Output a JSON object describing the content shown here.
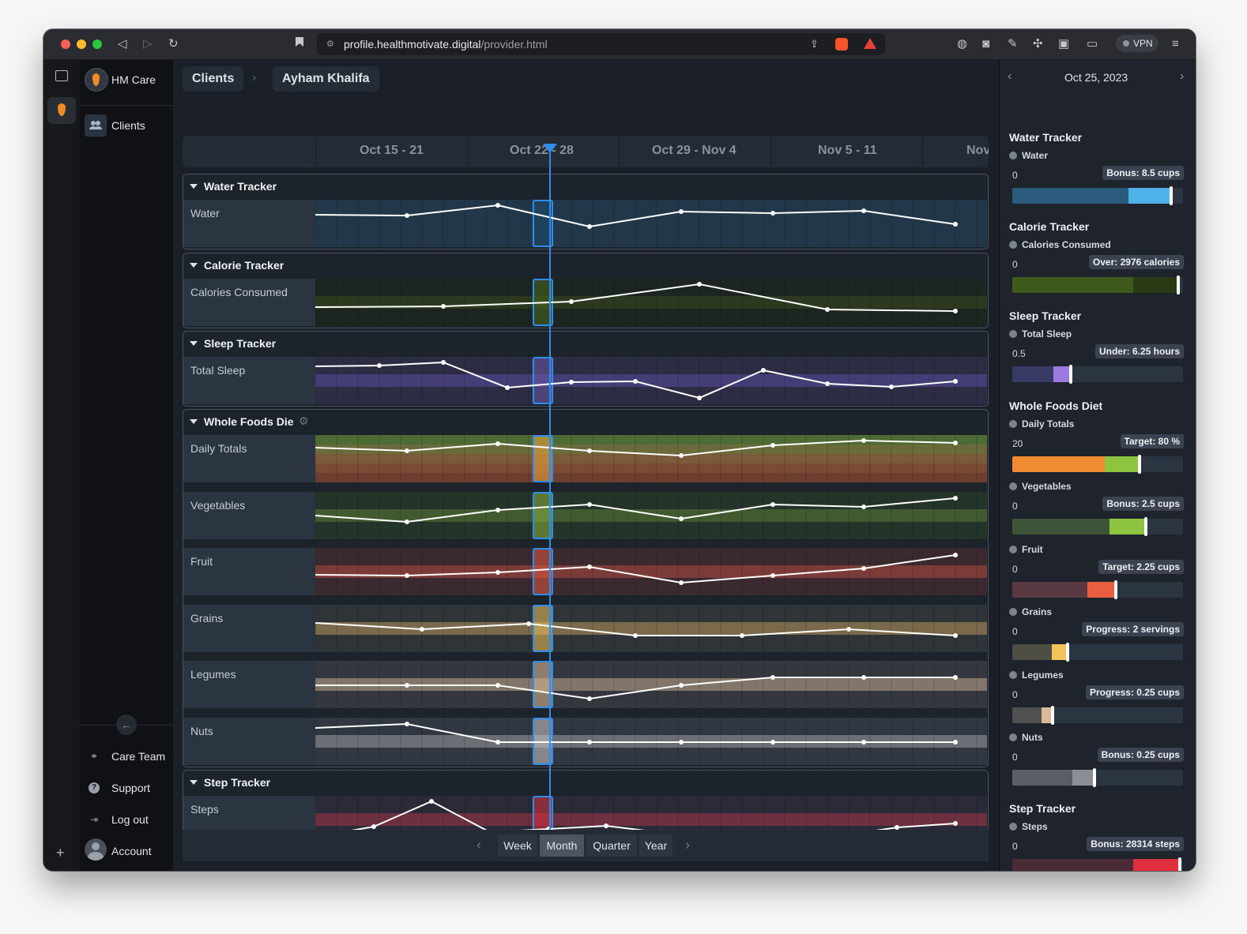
{
  "browser": {
    "url_host": "profile.healthmotivate.digital",
    "url_path": "/provider.html",
    "vpn_label": "VPN"
  },
  "sidebar": {
    "app_name": "HM Care",
    "clients_label": "Clients",
    "care_team_label": "Care Team",
    "support_label": "Support",
    "logout_label": "Log out",
    "account_label": "Account"
  },
  "breadcrumb": {
    "clients": "Clients",
    "client_name": "Ayham Khalifa"
  },
  "timeline": {
    "weeks": [
      "Oct 15 - 21",
      "Oct 22 - 28",
      "Oct 29 - Nov 4",
      "Nov 5 - 11",
      "Nov"
    ],
    "ranges": [
      "Week",
      "Month",
      "Quarter",
      "Year"
    ],
    "selected_range": "Month"
  },
  "trackers": [
    {
      "title": "Water Tracker",
      "rows": [
        {
          "label": "Water",
          "values": [
            0.28,
            0.3,
            0.05,
            0.58,
            0.22,
            0.25,
            0.2,
            0.52
          ]
        }
      ]
    },
    {
      "title": "Calorie Tracker",
      "rows": [
        {
          "label": "Calories Consumed",
          "values": [
            0.62,
            0.6,
            0.48,
            0.06,
            0.68,
            0.72
          ]
        }
      ]
    },
    {
      "title": "Sleep Tracker",
      "rows": [
        {
          "label": "Total Sleep",
          "values": [
            0.16,
            0.14,
            0.06,
            0.68,
            0.54,
            0.52,
            0.92,
            0.25,
            0.58,
            0.66,
            0.52
          ]
        }
      ]
    },
    {
      "title": "Whole Foods Die",
      "rows": [
        {
          "label": "Daily Totals",
          "values": [
            0.24,
            0.3,
            0.14,
            0.3,
            0.42,
            0.18,
            0.05,
            0.12
          ]
        },
        {
          "label": "Vegetables",
          "values": [
            0.5,
            0.66,
            0.36,
            0.24,
            0.58,
            0.23,
            0.29,
            0.08
          ]
        },
        {
          "label": "Fruit",
          "values": [
            0.58,
            0.59,
            0.52,
            0.38,
            0.77,
            0.59,
            0.42,
            0.1
          ]
        },
        {
          "label": "Grains",
          "values": [
            0.37,
            0.52,
            0.38,
            0.68,
            0.68,
            0.52,
            0.68
          ]
        },
        {
          "label": "Legumes",
          "values": [
            0.52,
            0.52,
            0.52,
            0.84,
            0.52,
            0.32,
            0.32,
            0.32
          ]
        },
        {
          "label": "Nuts",
          "values": [
            0.18,
            0.08,
            0.52,
            0.52,
            0.52,
            0.52,
            0.52,
            0.52
          ]
        }
      ]
    },
    {
      "title": "Step Tracker",
      "rows": [
        {
          "label": "Steps",
          "values": [
            0.93,
            0.68,
            0.05,
            0.8,
            0.74,
            0.65,
            0.83,
            0.91,
            0.84,
            0.9,
            0.7,
            0.6
          ]
        }
      ]
    }
  ],
  "panel": {
    "date": "Oct 25, 2023",
    "sections": [
      {
        "title": "Water Tracker",
        "metric": "Water",
        "min": "0",
        "max": "",
        "badge": "Bonus: 8.5 cups",
        "level": 0.94
      },
      {
        "title": "Calorie Tracker",
        "metric": "Calories Consumed",
        "min": "0",
        "max": "",
        "badge": "Over: 2976 calories",
        "level": 0.98
      },
      {
        "title": "Sleep Tracker",
        "metric": "Total Sleep",
        "min": "0.5",
        "max": "17.25",
        "badge": "Under: 6.25 hours",
        "level": 0.34
      },
      {
        "title": "Whole Foods Diet",
        "metric": "Daily Totals",
        "min": "20",
        "max": "100",
        "badge": "Target: 80 %",
        "level": 0.75
      }
    ],
    "sub_metrics": [
      {
        "metric": "Vegetables",
        "min": "0",
        "max": "",
        "badge": "Bonus: 2.5 cups",
        "level": 0.79
      },
      {
        "metric": "Fruit",
        "min": "0",
        "max": "3.75",
        "badge": "Target: 2.25 cups",
        "level": 0.61
      },
      {
        "metric": "Grains",
        "min": "0",
        "max": "6",
        "badge": "Progress: 2 servings",
        "level": 0.32
      },
      {
        "metric": "Legumes",
        "min": "0",
        "max": "1",
        "badge": "Progress: 0.25 cups",
        "level": 0.23
      },
      {
        "metric": "Nuts",
        "min": "0",
        "max": "0.5",
        "badge": "Bonus: 0.25 cups",
        "level": 0.48
      }
    ],
    "step": {
      "title": "Step Tracker",
      "metric": "Steps",
      "min": "0",
      "badge": "Bonus: 28314 steps",
      "level": 0.99
    }
  }
}
